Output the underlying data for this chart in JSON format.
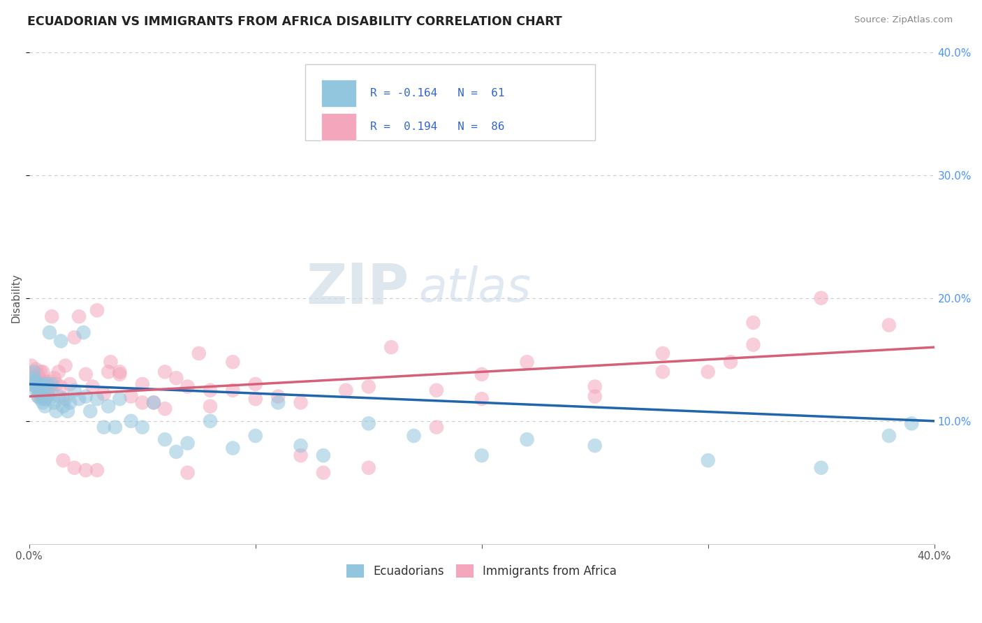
{
  "title": "ECUADORIAN VS IMMIGRANTS FROM AFRICA DISABILITY CORRELATION CHART",
  "source": "Source: ZipAtlas.com",
  "ylabel": "Disability",
  "xlim": [
    0.0,
    0.4
  ],
  "ylim": [
    0.0,
    0.4
  ],
  "blue_R": -0.164,
  "blue_N": 61,
  "pink_R": 0.194,
  "pink_N": 86,
  "blue_color": "#92c5de",
  "pink_color": "#f4a6bc",
  "blue_line_color": "#2166ac",
  "pink_line_color": "#d6607a",
  "legend_label1": "Ecuadorians",
  "legend_label2": "Immigrants from Africa",
  "blue_x": [
    0.001,
    0.002,
    0.002,
    0.003,
    0.003,
    0.003,
    0.004,
    0.004,
    0.004,
    0.005,
    0.005,
    0.005,
    0.006,
    0.006,
    0.006,
    0.007,
    0.007,
    0.008,
    0.008,
    0.009,
    0.009,
    0.01,
    0.011,
    0.012,
    0.013,
    0.014,
    0.015,
    0.016,
    0.017,
    0.018,
    0.02,
    0.022,
    0.024,
    0.025,
    0.027,
    0.03,
    0.033,
    0.035,
    0.038,
    0.04,
    0.045,
    0.05,
    0.055,
    0.06,
    0.065,
    0.07,
    0.08,
    0.09,
    0.1,
    0.11,
    0.12,
    0.13,
    0.15,
    0.17,
    0.2,
    0.22,
    0.25,
    0.3,
    0.35,
    0.38,
    0.39
  ],
  "blue_y": [
    0.13,
    0.14,
    0.135,
    0.128,
    0.125,
    0.132,
    0.12,
    0.13,
    0.125,
    0.118,
    0.122,
    0.128,
    0.115,
    0.12,
    0.13,
    0.118,
    0.112,
    0.13,
    0.125,
    0.118,
    0.172,
    0.13,
    0.115,
    0.108,
    0.12,
    0.165,
    0.112,
    0.118,
    0.108,
    0.115,
    0.125,
    0.118,
    0.172,
    0.12,
    0.108,
    0.118,
    0.095,
    0.112,
    0.095,
    0.118,
    0.1,
    0.095,
    0.115,
    0.085,
    0.075,
    0.082,
    0.1,
    0.078,
    0.088,
    0.115,
    0.08,
    0.072,
    0.098,
    0.088,
    0.072,
    0.085,
    0.08,
    0.068,
    0.062,
    0.088,
    0.098
  ],
  "pink_x": [
    0.001,
    0.002,
    0.002,
    0.003,
    0.003,
    0.004,
    0.004,
    0.005,
    0.005,
    0.005,
    0.006,
    0.006,
    0.007,
    0.007,
    0.008,
    0.008,
    0.009,
    0.01,
    0.011,
    0.012,
    0.013,
    0.014,
    0.015,
    0.016,
    0.018,
    0.02,
    0.022,
    0.025,
    0.028,
    0.03,
    0.033,
    0.036,
    0.04,
    0.045,
    0.05,
    0.055,
    0.06,
    0.065,
    0.07,
    0.075,
    0.08,
    0.09,
    0.1,
    0.11,
    0.12,
    0.13,
    0.14,
    0.15,
    0.16,
    0.18,
    0.2,
    0.22,
    0.25,
    0.28,
    0.3,
    0.32,
    0.01,
    0.015,
    0.02,
    0.025,
    0.03,
    0.035,
    0.04,
    0.05,
    0.06,
    0.07,
    0.08,
    0.09,
    0.1,
    0.12,
    0.15,
    0.18,
    0.2,
    0.25,
    0.28,
    0.32,
    0.003,
    0.004,
    0.005,
    0.006,
    0.007,
    0.008,
    0.009,
    0.35,
    0.31,
    0.38
  ],
  "pink_y": [
    0.145,
    0.138,
    0.13,
    0.142,
    0.128,
    0.135,
    0.12,
    0.13,
    0.125,
    0.14,
    0.128,
    0.12,
    0.132,
    0.118,
    0.13,
    0.122,
    0.128,
    0.125,
    0.135,
    0.13,
    0.14,
    0.128,
    0.118,
    0.145,
    0.13,
    0.168,
    0.185,
    0.138,
    0.128,
    0.19,
    0.122,
    0.148,
    0.138,
    0.12,
    0.13,
    0.115,
    0.14,
    0.135,
    0.128,
    0.155,
    0.125,
    0.148,
    0.13,
    0.12,
    0.115,
    0.058,
    0.125,
    0.128,
    0.16,
    0.125,
    0.118,
    0.148,
    0.128,
    0.155,
    0.14,
    0.18,
    0.185,
    0.068,
    0.062,
    0.06,
    0.06,
    0.14,
    0.14,
    0.115,
    0.11,
    0.058,
    0.112,
    0.125,
    0.118,
    0.072,
    0.062,
    0.095,
    0.138,
    0.12,
    0.14,
    0.162,
    0.132,
    0.138,
    0.125,
    0.14,
    0.128,
    0.12,
    0.132,
    0.2,
    0.148,
    0.178
  ]
}
